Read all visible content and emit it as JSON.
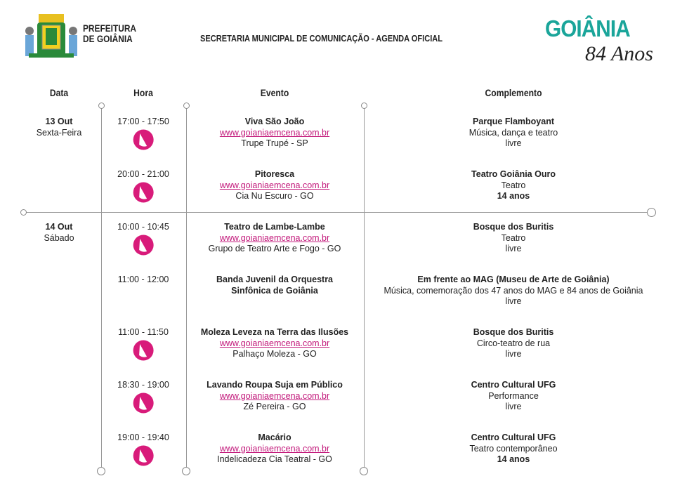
{
  "header": {
    "logo_left_text": [
      "PREFEITURA",
      "DE GOIÂNIA"
    ],
    "title": "SECRETARIA MUNICIPAL DE COMUNICAÇÃO - AGENDA OFICIAL",
    "logo_right_word": "GOIÂNIA",
    "logo_right_sub": "84 Anos"
  },
  "columns": {
    "date": "Data",
    "time": "Hora",
    "event": "Evento",
    "complement": "Complemento"
  },
  "colors": {
    "link": "#c2187a",
    "ticket": "#d81b7a"
  },
  "days": [
    {
      "date": "13 Out",
      "weekday": "Sexta-Feira"
    },
    {
      "date": "14 Out",
      "weekday": "Sábado"
    }
  ],
  "events": [
    {
      "time": "17:00 - 17:50",
      "ticket": true,
      "title": [
        "Viva São João"
      ],
      "link": "www.goianiaemcena.com.br",
      "group": "Trupe Trupé - SP",
      "place": "Parque Flamboyant",
      "type": "Música, dança e teatro",
      "rating": "livre",
      "rating_bold": false
    },
    {
      "time": "20:00 - 21:00",
      "ticket": true,
      "title": [
        "Pitoresca"
      ],
      "link": "www.goianiaemcena.com.br",
      "group": "Cia Nu Escuro - GO",
      "place": "Teatro Goiânia Ouro",
      "type": "Teatro",
      "rating": "14 anos",
      "rating_bold": true
    },
    {
      "time": "10:00 - 10:45",
      "ticket": true,
      "title": [
        "Teatro de Lambe-Lambe"
      ],
      "link": "www.goianiaemcena.com.br",
      "group": "Grupo de Teatro Arte e Fogo - GO",
      "place": "Bosque dos Buritis",
      "type": "Teatro",
      "rating": "livre",
      "rating_bold": false
    },
    {
      "time": "11:00 - 12:00",
      "ticket": false,
      "title": [
        "Banda Juvenil da Orquestra",
        "Sinfônica de Goiânia"
      ],
      "link": "",
      "group": "",
      "place": "Em frente ao MAG (Museu de Arte de Goiânia)",
      "type": "Música, comemoração dos 47 anos do MAG e 84 anos de Goiânia",
      "rating": "livre",
      "rating_bold": false
    },
    {
      "time": "11:00 - 11:50",
      "ticket": true,
      "title": [
        "Moleza Leveza na Terra das Ilusões"
      ],
      "link": "www.goianiaemcena.com.br",
      "group": "Palhaço Moleza - GO",
      "place": "Bosque dos Buritis",
      "type": "Circo-teatro de rua",
      "rating": "livre",
      "rating_bold": false
    },
    {
      "time": "18:30 - 19:00",
      "ticket": true,
      "title": [
        "Lavando Roupa Suja em Público"
      ],
      "link": "www.goianiaemcena.com.br",
      "group": "Zé Pereira - GO",
      "place": "Centro Cultural UFG",
      "type": "Performance",
      "rating": "livre",
      "rating_bold": false
    },
    {
      "time": "19:00 - 19:40",
      "ticket": true,
      "title": [
        "Macário"
      ],
      "link": "www.goianiaemcena.com.br",
      "group": "Indelicadeza Cia Teatral - GO",
      "place": "Centro Cultural UFG",
      "type": "Teatro contemporâneo",
      "rating": "14 anos",
      "rating_bold": true
    }
  ]
}
